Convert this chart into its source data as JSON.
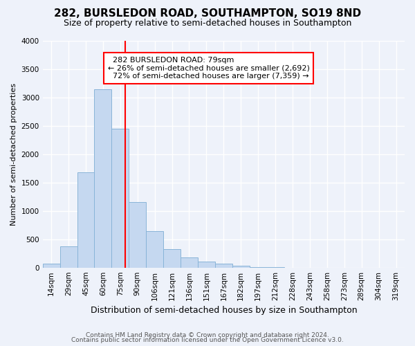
{
  "title": "282, BURSLEDON ROAD, SOUTHAMPTON, SO19 8ND",
  "subtitle": "Size of property relative to semi-detached houses in Southampton",
  "xlabel": "Distribution of semi-detached houses by size in Southampton",
  "ylabel": "Number of semi-detached properties",
  "footnote1": "Contains HM Land Registry data © Crown copyright and database right 2024.",
  "footnote2": "Contains public sector information licensed under the Open Government Licence v3.0.",
  "bar_labels": [
    "14sqm",
    "29sqm",
    "45sqm",
    "60sqm",
    "75sqm",
    "90sqm",
    "106sqm",
    "121sqm",
    "136sqm",
    "151sqm",
    "167sqm",
    "182sqm",
    "197sqm",
    "212sqm",
    "228sqm",
    "243sqm",
    "258sqm",
    "273sqm",
    "289sqm",
    "304sqm",
    "319sqm"
  ],
  "bar_heights": [
    75,
    370,
    1680,
    3150,
    2450,
    1160,
    640,
    330,
    185,
    110,
    65,
    35,
    10,
    5,
    2,
    1,
    1,
    0,
    0,
    0,
    0
  ],
  "bar_color": "#c5d8f0",
  "bar_edge_color": "#89b4d8",
  "ylim": [
    0,
    4000
  ],
  "yticks": [
    0,
    500,
    1000,
    1500,
    2000,
    2500,
    3000,
    3500,
    4000
  ],
  "property_label": "282 BURSLEDON ROAD: 79sqm",
  "pct_smaller": 26,
  "pct_larger": 72,
  "n_smaller": 2692,
  "n_larger": 7359,
  "vline_pos": 4.27,
  "bg_color": "#eef2fa",
  "grid_color": "#ffffff",
  "title_fontsize": 11,
  "subtitle_fontsize": 9,
  "ylabel_fontsize": 8,
  "xlabel_fontsize": 9,
  "tick_fontsize": 7.5,
  "annot_fontsize": 8,
  "footnote_fontsize": 6.5
}
